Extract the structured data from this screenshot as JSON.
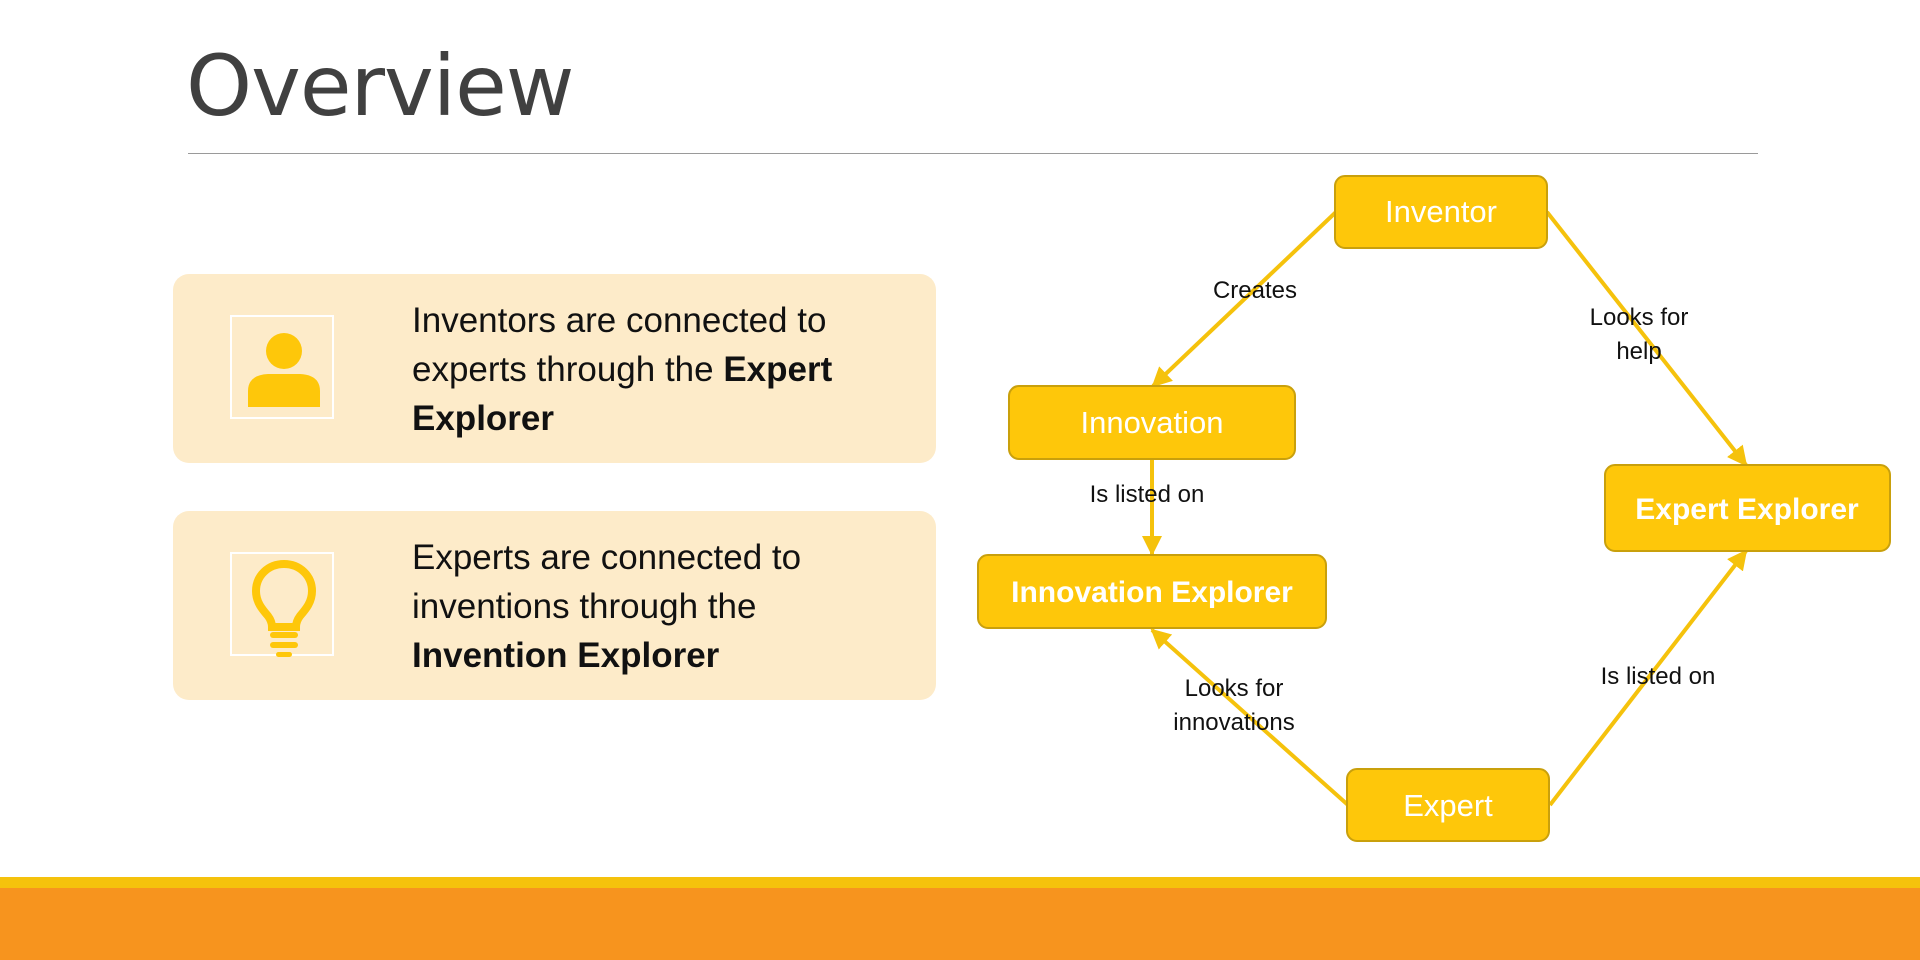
{
  "slide": {
    "title": "Overview"
  },
  "cards": [
    {
      "icon": "person-icon",
      "line1": "Inventors are connected to",
      "line2_a": "experts",
      "line2_b": " through",
      "line2_c": " the ",
      "line2_bold": "Expert",
      "line3_bold": "Explorer"
    },
    {
      "icon": "lightbulb-icon",
      "line1": "Experts are connected to",
      "line2_a": "inventions",
      "line2_b": " through",
      "line2_c": " the",
      "line3_bold": "Invention Explorer"
    }
  ],
  "diagram": {
    "colors": {
      "node_fill": "#fec70a",
      "node_border": "#c9a00c",
      "edge": "#f5c20c",
      "card_bg": "#fdebc9",
      "icon": "#fec70a",
      "footer": "#f7941e",
      "footer_stripe": "#f5c20c"
    },
    "nodes": {
      "inventor": "Inventor",
      "innovation": "Innovation",
      "innovation_explorer": "Innovation Explorer",
      "expert_explorer": "Expert Explorer",
      "expert": "Expert"
    },
    "edges": {
      "creates": "Creates",
      "looks_for_help_1": "Looks for",
      "looks_for_help_2": "help",
      "is_listed_on_1": "Is listed on",
      "looks_for_innovations_1": "Looks for",
      "looks_for_innovations_2": "innovations",
      "is_listed_on_2": "Is listed on"
    }
  }
}
